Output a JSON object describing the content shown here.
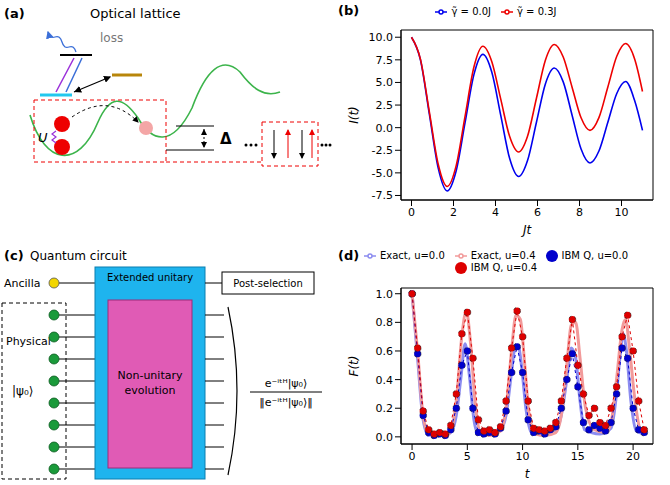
{
  "panel_labels": [
    "(a)",
    "(b)",
    "(c)",
    "(d)"
  ],
  "diagram_a": {
    "title": "Optical lattice",
    "loss": "loss",
    "interaction": "U",
    "offset": "Δ"
  },
  "chart_data": [
    {
      "type": "line",
      "x_label": "Jt",
      "y_label": "I(t)",
      "xlim": [
        -0.5,
        11.5
      ],
      "ylim": [
        -8,
        10.8
      ],
      "xticks": [
        0,
        2,
        4,
        6,
        8,
        10
      ],
      "yticks": [
        -7.5,
        {
          "value": -5,
          "label": "-5.0"
        },
        -2.5,
        {
          "value": 0,
          "label": "0.0"
        },
        2.5,
        {
          "value": 5,
          "label": "5.0"
        },
        7.5,
        {
          "value": 10,
          "label": "10.0"
        }
      ],
      "grid": false,
      "legend": "top",
      "series": [
        {
          "name": "γ̃ = 0.0J",
          "color": "#0000ee",
          "marker": "none",
          "line_style": "solid",
          "x": [
            0,
            0.425,
            0.85,
            1.275,
            1.7,
            2.125,
            2.55,
            2.975,
            3.4,
            3.825,
            4.25,
            4.675,
            5.1,
            5.525,
            5.95,
            6.375,
            6.8,
            7.225,
            7.65,
            8.075,
            8.5,
            8.925,
            9.35,
            9.775,
            10.2,
            10.625,
            11
          ],
          "values": [
            10,
            7.51,
            1.5,
            -4.51,
            -7,
            -4.79,
            0.55,
            5.89,
            8.1,
            6.12,
            1.35,
            -3.42,
            -5.4,
            -3.64,
            0.6,
            4.84,
            6.6,
            5.06,
            1.35,
            -2.36,
            -3.9,
            -2.58,
            0.6,
            3.78,
            5.1,
            3.0,
            -0.3
          ]
        },
        {
          "name": "γ̃ = 0.3J",
          "color": "#ee0000",
          "marker": "none",
          "line_style": "solid",
          "x": [
            0,
            0.425,
            0.85,
            1.275,
            1.7,
            2.125,
            2.55,
            2.975,
            3.4,
            3.825,
            4.25,
            4.675,
            5.1,
            5.525,
            5.95,
            6.375,
            6.8,
            7.225,
            7.65,
            8.075,
            8.5,
            8.925,
            9.35,
            9.775,
            10.2,
            10.625,
            11
          ],
          "values": [
            10,
            7.58,
            1.75,
            -4.08,
            -6.5,
            -4.23,
            1.25,
            6.73,
            9,
            7.29,
            3.15,
            -0.99,
            -2.7,
            -0.96,
            3.25,
            7.46,
            9.2,
            7.81,
            4.45,
            1.09,
            -0.3,
            1.11,
            4.5,
            7.89,
            9.3,
            7.6,
            4.0
          ]
        }
      ]
    },
    {
      "type": "line",
      "x_label": "t",
      "y_label": "F(t)",
      "xlim": [
        -1,
        21.8
      ],
      "ylim": [
        -0.05,
        1.04
      ],
      "xticks": [
        0,
        5,
        10,
        15,
        20
      ],
      "yticks": [
        {
          "value": 0,
          "label": "0.0"
        },
        0.2,
        0.4,
        0.6,
        0.8,
        {
          "value": 1,
          "label": "1.0"
        }
      ],
      "grid": false,
      "legend": "top",
      "series": [
        {
          "name": "Exact, u=0.0",
          "color": "#8c8cf0",
          "marker": "none",
          "line_style": "solid",
          "x": [
            0,
            0.5,
            1,
            1.5,
            2,
            3,
            3.5,
            4,
            4.4,
            4.8,
            5.2,
            5.6,
            6,
            7,
            8,
            8.5,
            9,
            9.3,
            9.6,
            9.9,
            10.3,
            10.8,
            12,
            13,
            13.5,
            14,
            14.4,
            14.8,
            15.2,
            15.6,
            17,
            18,
            18.5,
            18.8,
            19.1,
            19.4,
            19.8,
            20.3,
            21
          ],
          "values": [
            1,
            0.55,
            0.12,
            0.01,
            0.02,
            0.01,
            0.03,
            0.15,
            0.4,
            0.65,
            0.42,
            0.12,
            0.02,
            0.02,
            0.05,
            0.15,
            0.45,
            0.62,
            0.64,
            0.5,
            0.2,
            0.03,
            0.02,
            0.04,
            0.15,
            0.4,
            0.62,
            0.55,
            0.25,
            0.05,
            0.02,
            0.06,
            0.3,
            0.55,
            0.72,
            0.6,
            0.25,
            0.04,
            0.02
          ]
        },
        {
          "name": "Exact, u=0.4",
          "color": "#f29a9a",
          "marker": "none",
          "line_style": "solid",
          "x": [
            0,
            0.5,
            1,
            1.5,
            2,
            3,
            3.5,
            4,
            4.5,
            4.9,
            5.3,
            5.7,
            6.2,
            7,
            8,
            8.5,
            9,
            9.4,
            9.8,
            10.2,
            10.6,
            11.2,
            12,
            13,
            13.5,
            14,
            14.4,
            14.8,
            15.2,
            15.7,
            16.5,
            17.5,
            18,
            18.5,
            19,
            19.3,
            19.7,
            20.1,
            20.6,
            21
          ],
          "values": [
            1,
            0.6,
            0.15,
            0.02,
            0.01,
            0.01,
            0.04,
            0.25,
            0.7,
            0.88,
            0.65,
            0.25,
            0.03,
            0.01,
            0.04,
            0.2,
            0.6,
            0.85,
            0.82,
            0.5,
            0.15,
            0.02,
            0.01,
            0.03,
            0.15,
            0.5,
            0.78,
            0.8,
            0.55,
            0.2,
            0.05,
            0.03,
            0.1,
            0.4,
            0.75,
            0.82,
            0.6,
            0.3,
            0.06,
            0.02
          ]
        },
        {
          "name": "IBM Q, u=0.0",
          "color": "#0000cc",
          "marker": "circle",
          "line_style": "dashed",
          "x": [
            0,
            0.5,
            1,
            1.5,
            2,
            2.5,
            3,
            3.5,
            4,
            4.5,
            5,
            5.5,
            6,
            6.5,
            7,
            7.5,
            8,
            8.5,
            9,
            9.5,
            10,
            10.5,
            11,
            11.5,
            12,
            12.5,
            13,
            13.5,
            14,
            14.5,
            15,
            15.5,
            16,
            16.5,
            17,
            17.5,
            18,
            18.5,
            19,
            19.5,
            20,
            20.5,
            21
          ],
          "values": [
            1.0,
            0.58,
            0.15,
            0.03,
            0.01,
            0.02,
            0.01,
            0.05,
            0.2,
            0.5,
            0.6,
            0.2,
            0.03,
            0.02,
            0.03,
            0.02,
            0.06,
            0.18,
            0.45,
            0.63,
            0.45,
            0.12,
            0.03,
            0.04,
            0.02,
            0.05,
            0.07,
            0.2,
            0.4,
            0.58,
            0.35,
            0.1,
            0.05,
            0.08,
            0.06,
            0.04,
            0.1,
            0.3,
            0.62,
            0.55,
            0.2,
            0.05,
            0.03
          ]
        },
        {
          "name": "IBM Q, u=0.4",
          "color": "#dd0000",
          "marker": "circle",
          "line_style": "dashed",
          "x": [
            0,
            0.5,
            1,
            1.5,
            2,
            2.5,
            3,
            3.5,
            4,
            4.5,
            5,
            5.5,
            6,
            6.5,
            7,
            7.5,
            8,
            8.5,
            9,
            9.5,
            10,
            10.5,
            11,
            11.5,
            12,
            12.5,
            13,
            13.5,
            14,
            14.5,
            15,
            15.5,
            16,
            16.5,
            17,
            17.5,
            18,
            18.5,
            19,
            19.5,
            20,
            20.5,
            21
          ],
          "values": [
            1.0,
            0.62,
            0.18,
            0.05,
            0.02,
            0.03,
            0.02,
            0.08,
            0.3,
            0.72,
            0.87,
            0.55,
            0.12,
            0.04,
            0.05,
            0.03,
            0.07,
            0.25,
            0.62,
            0.88,
            0.7,
            0.25,
            0.06,
            0.05,
            0.04,
            0.06,
            0.1,
            0.25,
            0.55,
            0.82,
            0.5,
            0.3,
            0.15,
            0.2,
            0.1,
            0.08,
            0.2,
            0.35,
            0.7,
            0.85,
            0.6,
            0.25,
            0.05
          ]
        }
      ]
    }
  ],
  "diagram_c": {
    "title": "Quantum circuit",
    "ancilla": "Ancilla",
    "physical": "Physical",
    "initial_state": "|ψ₀⟩",
    "outer_box": "Extended unitary",
    "inner_box": "Non-unitary evolution",
    "post_selection": "Post-selection",
    "output": {
      "numerator": "e⁻ⁱᵗᴴ|ψ₀⟩",
      "denominator": "‖e⁻ⁱᵗᴴ|ψ₀⟩‖"
    }
  }
}
